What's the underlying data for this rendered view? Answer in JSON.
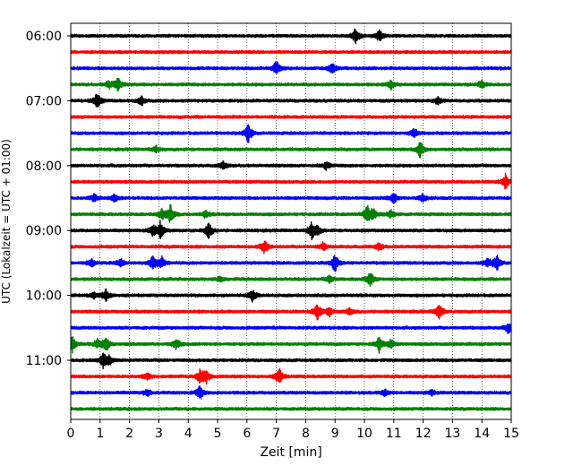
{
  "chart_data": {
    "type": "line",
    "xlabel": "Zeit  [min]",
    "ylabel": "UTC (Lokalzeit = UTC + 01:00)",
    "xlim": [
      0,
      15
    ],
    "x_ticks": [
      "0",
      "1",
      "2",
      "3",
      "4",
      "5",
      "6",
      "7",
      "8",
      "9",
      "10",
      "11",
      "12",
      "13",
      "14",
      "15"
    ],
    "y_tick_labels": [
      "06:00",
      "07:00",
      "08:00",
      "09:00",
      "10:00",
      "11:00"
    ],
    "grid": "vertical dotted at every minute",
    "trace_interval_minutes": 15,
    "trace_start_times": [
      "06:00",
      "06:15",
      "06:30",
      "06:45",
      "07:00",
      "07:15",
      "07:30",
      "07:45",
      "08:00",
      "08:15",
      "08:30",
      "08:45",
      "09:00",
      "09:15",
      "09:30",
      "09:45",
      "10:00",
      "10:15",
      "10:30",
      "10:45",
      "11:00",
      "11:15",
      "11:30",
      "11:45"
    ],
    "trace_colors": [
      "#000000",
      "#ff0000",
      "#0000ff",
      "#008000"
    ],
    "events": [
      {
        "trace": 0,
        "t": 9.7,
        "amp": 0.9
      },
      {
        "trace": 0,
        "t": 10.5,
        "amp": 0.7
      },
      {
        "trace": 2,
        "t": 7.0,
        "amp": 0.8
      },
      {
        "trace": 2,
        "t": 8.9,
        "amp": 0.7
      },
      {
        "trace": 3,
        "t": 1.6,
        "amp": 0.8
      },
      {
        "trace": 3,
        "t": 1.3,
        "amp": 0.4
      },
      {
        "trace": 3,
        "t": 10.9,
        "amp": 0.5
      },
      {
        "trace": 3,
        "t": 14.0,
        "amp": 0.4
      },
      {
        "trace": 4,
        "t": 0.9,
        "amp": 0.9
      },
      {
        "trace": 4,
        "t": 2.4,
        "amp": 0.5
      },
      {
        "trace": 4,
        "t": 12.5,
        "amp": 0.4
      },
      {
        "trace": 6,
        "t": 6.05,
        "amp": 1.1
      },
      {
        "trace": 6,
        "t": 11.7,
        "amp": 0.5
      },
      {
        "trace": 7,
        "t": 11.9,
        "amp": 0.9
      },
      {
        "trace": 7,
        "t": 2.9,
        "amp": 0.4
      },
      {
        "trace": 8,
        "t": 5.2,
        "amp": 0.4
      },
      {
        "trace": 8,
        "t": 8.7,
        "amp": 0.4
      },
      {
        "trace": 9,
        "t": 14.8,
        "amp": 0.8
      },
      {
        "trace": 10,
        "t": 11.0,
        "amp": 0.6
      },
      {
        "trace": 10,
        "t": 0.8,
        "amp": 0.4
      },
      {
        "trace": 10,
        "t": 1.5,
        "amp": 0.4
      },
      {
        "trace": 10,
        "t": 12.0,
        "amp": 0.4
      },
      {
        "trace": 11,
        "t": 3.4,
        "amp": 1.0
      },
      {
        "trace": 11,
        "t": 3.1,
        "amp": 0.6
      },
      {
        "trace": 11,
        "t": 4.6,
        "amp": 0.4
      },
      {
        "trace": 11,
        "t": 10.1,
        "amp": 0.9
      },
      {
        "trace": 11,
        "t": 10.3,
        "amp": 0.6
      },
      {
        "trace": 11,
        "t": 10.9,
        "amp": 0.4
      },
      {
        "trace": 12,
        "t": 3.05,
        "amp": 0.9
      },
      {
        "trace": 12,
        "t": 2.8,
        "amp": 0.6
      },
      {
        "trace": 12,
        "t": 4.7,
        "amp": 0.9
      },
      {
        "trace": 12,
        "t": 8.2,
        "amp": 0.9
      },
      {
        "trace": 12,
        "t": 8.4,
        "amp": 0.5
      },
      {
        "trace": 13,
        "t": 6.6,
        "amp": 0.7
      },
      {
        "trace": 13,
        "t": 8.6,
        "amp": 0.4
      },
      {
        "trace": 13,
        "t": 10.5,
        "amp": 0.4
      },
      {
        "trace": 14,
        "t": 0.7,
        "amp": 0.5
      },
      {
        "trace": 14,
        "t": 1.7,
        "amp": 0.5
      },
      {
        "trace": 14,
        "t": 2.8,
        "amp": 0.9
      },
      {
        "trace": 14,
        "t": 3.1,
        "amp": 0.6
      },
      {
        "trace": 14,
        "t": 9.0,
        "amp": 1.0
      },
      {
        "trace": 14,
        "t": 14.5,
        "amp": 0.9
      },
      {
        "trace": 14,
        "t": 14.2,
        "amp": 0.5
      },
      {
        "trace": 15,
        "t": 10.2,
        "amp": 0.8
      },
      {
        "trace": 15,
        "t": 8.8,
        "amp": 0.4
      },
      {
        "trace": 15,
        "t": 5.1,
        "amp": 0.3
      },
      {
        "trace": 16,
        "t": 1.2,
        "amp": 0.7
      },
      {
        "trace": 16,
        "t": 6.2,
        "amp": 0.7
      },
      {
        "trace": 16,
        "t": 0.8,
        "amp": 0.3
      },
      {
        "trace": 17,
        "t": 8.4,
        "amp": 0.9
      },
      {
        "trace": 17,
        "t": 8.8,
        "amp": 0.5
      },
      {
        "trace": 17,
        "t": 9.5,
        "amp": 0.4
      },
      {
        "trace": 17,
        "t": 12.55,
        "amp": 0.9
      },
      {
        "trace": 18,
        "t": 14.9,
        "amp": 0.6
      },
      {
        "trace": 19,
        "t": 0.05,
        "amp": 0.9
      },
      {
        "trace": 19,
        "t": 1.2,
        "amp": 0.9
      },
      {
        "trace": 19,
        "t": 0.9,
        "amp": 0.5
      },
      {
        "trace": 19,
        "t": 3.6,
        "amp": 0.6
      },
      {
        "trace": 19,
        "t": 10.5,
        "amp": 0.8
      },
      {
        "trace": 19,
        "t": 10.9,
        "amp": 0.5
      },
      {
        "trace": 20,
        "t": 1.1,
        "amp": 0.7
      },
      {
        "trace": 20,
        "t": 1.3,
        "amp": 0.5
      },
      {
        "trace": 21,
        "t": 4.6,
        "amp": 0.9
      },
      {
        "trace": 21,
        "t": 4.4,
        "amp": 0.6
      },
      {
        "trace": 21,
        "t": 7.1,
        "amp": 0.9
      },
      {
        "trace": 21,
        "t": 2.6,
        "amp": 0.4
      },
      {
        "trace": 22,
        "t": 4.4,
        "amp": 0.8
      },
      {
        "trace": 22,
        "t": 2.6,
        "amp": 0.4
      },
      {
        "trace": 22,
        "t": 10.7,
        "amp": 0.4
      },
      {
        "trace": 22,
        "t": 12.3,
        "amp": 0.3
      }
    ]
  }
}
